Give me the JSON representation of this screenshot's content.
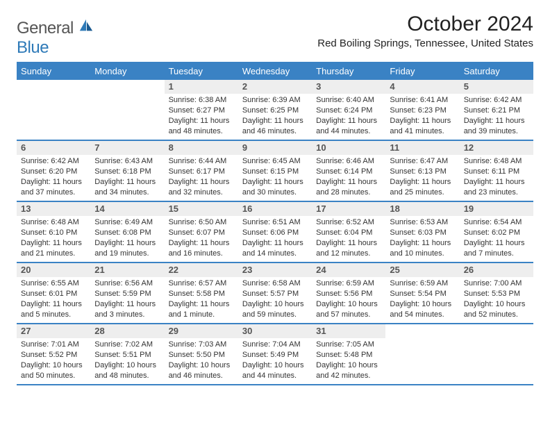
{
  "brand": {
    "part1": "General",
    "part2": "Blue"
  },
  "title": {
    "monthYear": "October 2024",
    "location": "Red Boiling Springs, Tennessee, United States"
  },
  "colors": {
    "headerBlue": "#3a82c4",
    "dayBarGrey": "#eeeeee",
    "text": "#333333",
    "white": "#ffffff"
  },
  "typography": {
    "monthYear_fontsize": 30,
    "location_fontsize": 15,
    "dow_fontsize": 13,
    "daynum_fontsize": 13,
    "body_fontsize": 11
  },
  "daysOfWeek": [
    "Sunday",
    "Monday",
    "Tuesday",
    "Wednesday",
    "Thursday",
    "Friday",
    "Saturday"
  ],
  "weeks": [
    [
      {
        "empty": true
      },
      {
        "empty": true
      },
      {
        "num": "1",
        "sunrise": "Sunrise: 6:38 AM",
        "sunset": "Sunset: 6:27 PM",
        "daylight": "Daylight: 11 hours and 48 minutes."
      },
      {
        "num": "2",
        "sunrise": "Sunrise: 6:39 AM",
        "sunset": "Sunset: 6:25 PM",
        "daylight": "Daylight: 11 hours and 46 minutes."
      },
      {
        "num": "3",
        "sunrise": "Sunrise: 6:40 AM",
        "sunset": "Sunset: 6:24 PM",
        "daylight": "Daylight: 11 hours and 44 minutes."
      },
      {
        "num": "4",
        "sunrise": "Sunrise: 6:41 AM",
        "sunset": "Sunset: 6:23 PM",
        "daylight": "Daylight: 11 hours and 41 minutes."
      },
      {
        "num": "5",
        "sunrise": "Sunrise: 6:42 AM",
        "sunset": "Sunset: 6:21 PM",
        "daylight": "Daylight: 11 hours and 39 minutes."
      }
    ],
    [
      {
        "num": "6",
        "sunrise": "Sunrise: 6:42 AM",
        "sunset": "Sunset: 6:20 PM",
        "daylight": "Daylight: 11 hours and 37 minutes."
      },
      {
        "num": "7",
        "sunrise": "Sunrise: 6:43 AM",
        "sunset": "Sunset: 6:18 PM",
        "daylight": "Daylight: 11 hours and 34 minutes."
      },
      {
        "num": "8",
        "sunrise": "Sunrise: 6:44 AM",
        "sunset": "Sunset: 6:17 PM",
        "daylight": "Daylight: 11 hours and 32 minutes."
      },
      {
        "num": "9",
        "sunrise": "Sunrise: 6:45 AM",
        "sunset": "Sunset: 6:15 PM",
        "daylight": "Daylight: 11 hours and 30 minutes."
      },
      {
        "num": "10",
        "sunrise": "Sunrise: 6:46 AM",
        "sunset": "Sunset: 6:14 PM",
        "daylight": "Daylight: 11 hours and 28 minutes."
      },
      {
        "num": "11",
        "sunrise": "Sunrise: 6:47 AM",
        "sunset": "Sunset: 6:13 PM",
        "daylight": "Daylight: 11 hours and 25 minutes."
      },
      {
        "num": "12",
        "sunrise": "Sunrise: 6:48 AM",
        "sunset": "Sunset: 6:11 PM",
        "daylight": "Daylight: 11 hours and 23 minutes."
      }
    ],
    [
      {
        "num": "13",
        "sunrise": "Sunrise: 6:48 AM",
        "sunset": "Sunset: 6:10 PM",
        "daylight": "Daylight: 11 hours and 21 minutes."
      },
      {
        "num": "14",
        "sunrise": "Sunrise: 6:49 AM",
        "sunset": "Sunset: 6:08 PM",
        "daylight": "Daylight: 11 hours and 19 minutes."
      },
      {
        "num": "15",
        "sunrise": "Sunrise: 6:50 AM",
        "sunset": "Sunset: 6:07 PM",
        "daylight": "Daylight: 11 hours and 16 minutes."
      },
      {
        "num": "16",
        "sunrise": "Sunrise: 6:51 AM",
        "sunset": "Sunset: 6:06 PM",
        "daylight": "Daylight: 11 hours and 14 minutes."
      },
      {
        "num": "17",
        "sunrise": "Sunrise: 6:52 AM",
        "sunset": "Sunset: 6:04 PM",
        "daylight": "Daylight: 11 hours and 12 minutes."
      },
      {
        "num": "18",
        "sunrise": "Sunrise: 6:53 AM",
        "sunset": "Sunset: 6:03 PM",
        "daylight": "Daylight: 11 hours and 10 minutes."
      },
      {
        "num": "19",
        "sunrise": "Sunrise: 6:54 AM",
        "sunset": "Sunset: 6:02 PM",
        "daylight": "Daylight: 11 hours and 7 minutes."
      }
    ],
    [
      {
        "num": "20",
        "sunrise": "Sunrise: 6:55 AM",
        "sunset": "Sunset: 6:01 PM",
        "daylight": "Daylight: 11 hours and 5 minutes."
      },
      {
        "num": "21",
        "sunrise": "Sunrise: 6:56 AM",
        "sunset": "Sunset: 5:59 PM",
        "daylight": "Daylight: 11 hours and 3 minutes."
      },
      {
        "num": "22",
        "sunrise": "Sunrise: 6:57 AM",
        "sunset": "Sunset: 5:58 PM",
        "daylight": "Daylight: 11 hours and 1 minute."
      },
      {
        "num": "23",
        "sunrise": "Sunrise: 6:58 AM",
        "sunset": "Sunset: 5:57 PM",
        "daylight": "Daylight: 10 hours and 59 minutes."
      },
      {
        "num": "24",
        "sunrise": "Sunrise: 6:59 AM",
        "sunset": "Sunset: 5:56 PM",
        "daylight": "Daylight: 10 hours and 57 minutes."
      },
      {
        "num": "25",
        "sunrise": "Sunrise: 6:59 AM",
        "sunset": "Sunset: 5:54 PM",
        "daylight": "Daylight: 10 hours and 54 minutes."
      },
      {
        "num": "26",
        "sunrise": "Sunrise: 7:00 AM",
        "sunset": "Sunset: 5:53 PM",
        "daylight": "Daylight: 10 hours and 52 minutes."
      }
    ],
    [
      {
        "num": "27",
        "sunrise": "Sunrise: 7:01 AM",
        "sunset": "Sunset: 5:52 PM",
        "daylight": "Daylight: 10 hours and 50 minutes."
      },
      {
        "num": "28",
        "sunrise": "Sunrise: 7:02 AM",
        "sunset": "Sunset: 5:51 PM",
        "daylight": "Daylight: 10 hours and 48 minutes."
      },
      {
        "num": "29",
        "sunrise": "Sunrise: 7:03 AM",
        "sunset": "Sunset: 5:50 PM",
        "daylight": "Daylight: 10 hours and 46 minutes."
      },
      {
        "num": "30",
        "sunrise": "Sunrise: 7:04 AM",
        "sunset": "Sunset: 5:49 PM",
        "daylight": "Daylight: 10 hours and 44 minutes."
      },
      {
        "num": "31",
        "sunrise": "Sunrise: 7:05 AM",
        "sunset": "Sunset: 5:48 PM",
        "daylight": "Daylight: 10 hours and 42 minutes."
      },
      {
        "empty": true
      },
      {
        "empty": true
      }
    ]
  ]
}
